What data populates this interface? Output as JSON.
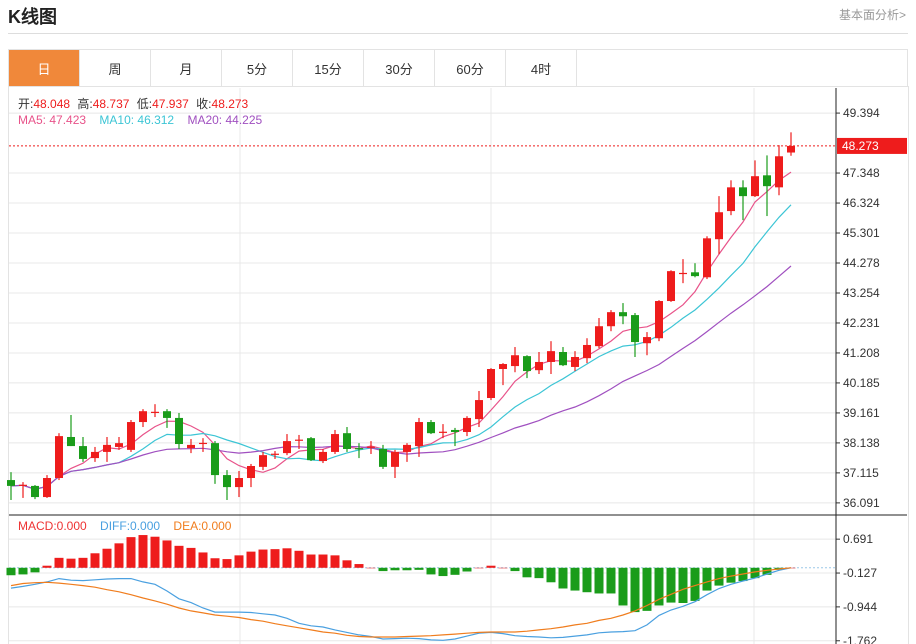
{
  "header": {
    "title": "K线图",
    "link": "基本面分析>"
  },
  "tabs": [
    {
      "label": "日",
      "active": true
    },
    {
      "label": "周"
    },
    {
      "label": "月"
    },
    {
      "label": "5分"
    },
    {
      "label": "15分"
    },
    {
      "label": "30分"
    },
    {
      "label": "60分"
    },
    {
      "label": "4时"
    }
  ],
  "ohlc_legend": {
    "open_label": "开:",
    "open": "48.048",
    "high_label": "高:",
    "high": "48.737",
    "low_label": "低:",
    "low": "47.937",
    "close_label": "收:",
    "close": "48.273"
  },
  "ma_legend": {
    "ma5": "MA5: 47.423",
    "ma10": "MA10: 46.312",
    "ma20": "MA20: 44.225"
  },
  "macd_legend": {
    "macd": "MACD:0.000",
    "diff": "DIFF:0.000",
    "dea": "DEA:0.000"
  },
  "colors": {
    "up": "#ee1c1c",
    "down": "#1a9c1a",
    "ma5": "#e8538a",
    "ma10": "#3cc5d5",
    "ma20": "#a050c0",
    "diff": "#4aa0e0",
    "dea": "#f07d1e",
    "accent": "#f0883a"
  },
  "chart_data": [
    {
      "type": "candlestick",
      "ylim": [
        35.78,
        50.25
      ],
      "y_ticks": [
        "49.394",
        "47.348",
        "46.324",
        "45.301",
        "44.278",
        "43.254",
        "42.231",
        "41.208",
        "40.185",
        "39.161",
        "38.138",
        "37.115",
        "36.091"
      ],
      "last_price_label": "48.273",
      "moving_averages": [
        5,
        10,
        20
      ],
      "ohlc": [
        [
          36.87,
          37.14,
          36.19,
          36.67
        ],
        [
          36.7,
          36.8,
          36.26,
          36.71
        ],
        [
          36.67,
          36.7,
          36.22,
          36.29
        ],
        [
          36.29,
          37.04,
          36.26,
          36.94
        ],
        [
          36.94,
          38.47,
          36.87,
          38.37
        ],
        [
          38.34,
          39.09,
          38.03,
          38.03
        ],
        [
          38.03,
          38.34,
          37.49,
          37.59
        ],
        [
          37.62,
          38.0,
          37.49,
          37.83
        ],
        [
          37.83,
          38.34,
          37.49,
          38.07
        ],
        [
          38.0,
          38.34,
          37.9,
          38.13
        ],
        [
          37.9,
          38.92,
          37.83,
          38.85
        ],
        [
          38.85,
          39.29,
          38.68,
          39.22
        ],
        [
          39.19,
          39.46,
          39.02,
          39.2
        ],
        [
          39.22,
          39.29,
          38.65,
          38.99
        ],
        [
          38.99,
          39.16,
          37.93,
          38.1
        ],
        [
          37.96,
          38.27,
          37.79,
          38.07
        ],
        [
          38.13,
          38.3,
          37.83,
          38.14
        ],
        [
          38.13,
          38.2,
          36.74,
          37.04
        ],
        [
          37.04,
          37.21,
          36.19,
          36.63
        ],
        [
          36.63,
          37.18,
          36.29,
          36.94
        ],
        [
          36.94,
          37.42,
          36.63,
          37.35
        ],
        [
          37.32,
          37.83,
          37.21,
          37.72
        ],
        [
          37.76,
          37.86,
          37.59,
          37.77
        ],
        [
          37.79,
          38.44,
          37.72,
          38.2
        ],
        [
          38.24,
          38.41,
          37.93,
          38.25
        ],
        [
          38.3,
          38.34,
          37.52,
          37.55
        ],
        [
          37.52,
          37.93,
          37.45,
          37.83
        ],
        [
          37.83,
          38.58,
          37.76,
          38.44
        ],
        [
          38.47,
          38.68,
          37.83,
          37.93
        ],
        [
          37.96,
          38.13,
          37.62,
          37.95
        ],
        [
          38.0,
          38.2,
          37.76,
          38.01
        ],
        [
          37.93,
          38.07,
          37.25,
          37.32
        ],
        [
          37.32,
          37.9,
          36.94,
          37.83
        ],
        [
          37.83,
          38.13,
          37.49,
          38.07
        ],
        [
          38.03,
          38.99,
          37.66,
          38.85
        ],
        [
          38.85,
          38.92,
          38.44,
          38.47
        ],
        [
          38.51,
          38.78,
          38.3,
          38.52
        ],
        [
          38.58,
          38.65,
          38.03,
          38.51
        ],
        [
          38.51,
          39.05,
          38.37,
          38.99
        ],
        [
          38.95,
          39.91,
          38.68,
          39.6
        ],
        [
          39.67,
          40.69,
          39.6,
          40.66
        ],
        [
          40.66,
          40.86,
          40.11,
          40.83
        ],
        [
          40.76,
          41.41,
          40.55,
          41.13
        ],
        [
          41.1,
          41.13,
          40.35,
          40.59
        ],
        [
          40.62,
          41.24,
          40.49,
          40.9
        ],
        [
          40.9,
          41.61,
          40.49,
          41.27
        ],
        [
          41.24,
          41.41,
          40.76,
          40.79
        ],
        [
          40.73,
          41.27,
          40.59,
          41.07
        ],
        [
          41.03,
          41.71,
          40.86,
          41.48
        ],
        [
          41.44,
          42.4,
          41.37,
          42.12
        ],
        [
          42.12,
          42.67,
          41.95,
          42.6
        ],
        [
          42.6,
          42.91,
          42.19,
          42.46
        ],
        [
          42.5,
          42.57,
          41.07,
          41.58
        ],
        [
          41.54,
          41.92,
          41.13,
          41.75
        ],
        [
          41.71,
          43.01,
          41.61,
          42.98
        ],
        [
          42.98,
          44.03,
          42.95,
          44.0
        ],
        [
          43.93,
          44.41,
          43.59,
          43.94
        ],
        [
          43.96,
          44.27,
          43.79,
          43.83
        ],
        [
          43.79,
          45.19,
          43.73,
          45.12
        ],
        [
          45.09,
          46.56,
          44.58,
          46.01
        ],
        [
          46.05,
          47.1,
          45.91,
          46.86
        ],
        [
          46.86,
          47.1,
          45.74,
          46.56
        ],
        [
          46.56,
          47.78,
          46.53,
          47.24
        ],
        [
          47.27,
          47.95,
          45.88,
          46.9
        ],
        [
          46.86,
          48.3,
          46.59,
          47.92
        ],
        [
          48.048,
          48.737,
          47.937,
          48.273
        ]
      ]
    },
    {
      "type": "bar+line",
      "ylim": [
        -1.84,
        1.25
      ],
      "y_ticks": [
        "0.691",
        "-0.127",
        "-0.944",
        "-1.762"
      ],
      "macd": [
        -0.18,
        -0.16,
        -0.11,
        0.05,
        0.24,
        0.22,
        0.24,
        0.35,
        0.46,
        0.59,
        0.74,
        0.79,
        0.75,
        0.66,
        0.53,
        0.48,
        0.37,
        0.23,
        0.21,
        0.3,
        0.39,
        0.44,
        0.45,
        0.47,
        0.41,
        0.32,
        0.32,
        0.3,
        0.18,
        0.09,
        0.0,
        -0.08,
        -0.06,
        -0.06,
        -0.05,
        -0.16,
        -0.2,
        -0.17,
        -0.09,
        0.0,
        0.05,
        0.0,
        -0.08,
        -0.23,
        -0.25,
        -0.35,
        -0.5,
        -0.55,
        -0.59,
        -0.62,
        -0.62,
        -0.91,
        -1.07,
        -1.04,
        -0.91,
        -0.84,
        -0.85,
        -0.8,
        -0.55,
        -0.43,
        -0.36,
        -0.32,
        -0.25,
        -0.17,
        -0.05,
        0.0
      ],
      "diff": [
        -0.49,
        -0.45,
        -0.4,
        -0.34,
        -0.26,
        -0.3,
        -0.31,
        -0.29,
        -0.27,
        -0.26,
        -0.26,
        -0.34,
        -0.4,
        -0.56,
        -0.75,
        -0.84,
        -0.97,
        -1.07,
        -1.07,
        -1.07,
        -1.08,
        -1.11,
        -1.14,
        -1.22,
        -1.34,
        -1.4,
        -1.43,
        -1.5,
        -1.56,
        -1.62,
        -1.66,
        -1.72,
        -1.71,
        -1.7,
        -1.71,
        -1.74,
        -1.75,
        -1.72,
        -1.65,
        -1.58,
        -1.56,
        -1.59,
        -1.64,
        -1.66,
        -1.67,
        -1.69,
        -1.68,
        -1.65,
        -1.62,
        -1.57,
        -1.55,
        -1.54,
        -1.52,
        -1.38,
        -1.15,
        -1.02,
        -0.93,
        -0.82,
        -0.65,
        -0.5,
        -0.4,
        -0.32,
        -0.25,
        -0.15,
        -0.06,
        0.0
      ],
      "dea": [
        -0.43,
        -0.38,
        -0.36,
        -0.35,
        -0.37,
        -0.4,
        -0.43,
        -0.47,
        -0.53,
        -0.58,
        -0.65,
        -0.73,
        -0.8,
        -0.88,
        -0.97,
        -1.04,
        -1.09,
        -1.14,
        -1.17,
        -1.2,
        -1.25,
        -1.29,
        -1.35,
        -1.4,
        -1.45,
        -1.5,
        -1.55,
        -1.58,
        -1.63,
        -1.66,
        -1.67,
        -1.67,
        -1.67,
        -1.66,
        -1.65,
        -1.64,
        -1.62,
        -1.6,
        -1.58,
        -1.56,
        -1.55,
        -1.55,
        -1.55,
        -1.53,
        -1.5,
        -1.47,
        -1.43,
        -1.38,
        -1.34,
        -1.27,
        -1.22,
        -1.14,
        -1.04,
        -0.91,
        -0.76,
        -0.64,
        -0.52,
        -0.43,
        -0.34,
        -0.26,
        -0.2,
        -0.15,
        -0.1,
        -0.06,
        -0.03,
        0.0
      ]
    }
  ]
}
